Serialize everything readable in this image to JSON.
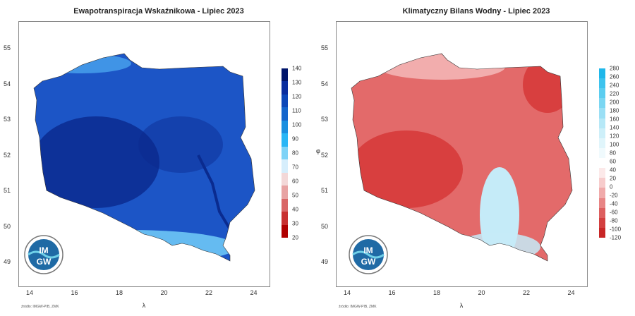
{
  "left": {
    "title": "Ewapotranspiracja Wskaźnikowa - Lipiec 2023",
    "x_ticks": [
      "14",
      "16",
      "18",
      "20",
      "22",
      "24"
    ],
    "y_ticks": [
      "55",
      "54",
      "53",
      "52",
      "51",
      "50",
      "49"
    ],
    "xlabel": "λ",
    "source": "źródło: IMGW-PIB, ZMK",
    "logo_top": "IM",
    "logo_bottom": "GW",
    "colorbar": {
      "ticks": [
        "140",
        "130",
        "120",
        "110",
        "100",
        "90",
        "80",
        "70",
        "60",
        "50",
        "40",
        "30",
        "20"
      ],
      "colors": [
        "#00156b",
        "#0a2d9e",
        "#0d47b8",
        "#1465cc",
        "#1a8fe0",
        "#29b6f6",
        "#7fd3f7",
        "#d6eefc",
        "#f3d8d8",
        "#e8a3a3",
        "#d96666",
        "#c83030",
        "#b00000"
      ]
    },
    "map_colors": {
      "main": "#1c55c6",
      "dark": "#0a2b8f",
      "light": "#6ec6f5",
      "coast": "#4aa4ee"
    }
  },
  "right": {
    "title": "Klimatyczny Bilans Wodny - Lipiec 2023",
    "x_ticks": [
      "14",
      "16",
      "18",
      "20",
      "22",
      "24"
    ],
    "y_ticks": [
      "55",
      "54",
      "53",
      "52",
      "51",
      "50",
      "49"
    ],
    "xlabel": "λ",
    "ylabel": "φ",
    "source": "źródło: IMGW-PIB, ZMK",
    "logo_top": "IM",
    "logo_bottom": "GW",
    "colorbar": {
      "ticks": [
        "280",
        "260",
        "240",
        "220",
        "200",
        "180",
        "160",
        "140",
        "120",
        "100",
        "80",
        "60",
        "40",
        "20",
        "0",
        "-20",
        "-40",
        "-60",
        "-80",
        "-100",
        "-120"
      ],
      "colors": [
        "#1fb7ea",
        "#3dc3ee",
        "#5bcdf0",
        "#7ad6f2",
        "#9adff5",
        "#b6e8f7",
        "#cdeff9",
        "#e0f5fb",
        "#f0fafd",
        "#ffffff",
        "#fce9e9",
        "#f7cccc",
        "#f0aaaa",
        "#e88585",
        "#dd5f5f",
        "#d33f3f",
        "#c82626"
      ]
    },
    "map_colors": {
      "main": "#e36a6a",
      "dark": "#d43535",
      "light": "#f3b5b5",
      "blue": "#c5ebf8"
    }
  }
}
